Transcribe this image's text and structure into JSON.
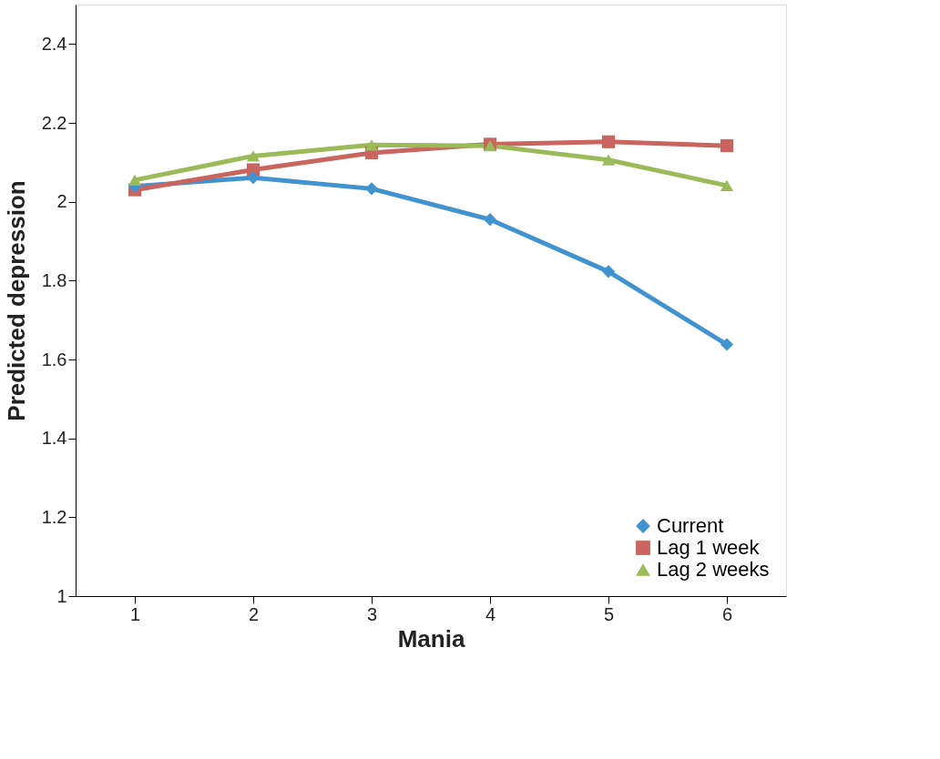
{
  "chart_data": {
    "type": "line",
    "xlabel": "Mania",
    "ylabel": "Predicted depression",
    "categories": [
      "1",
      "2",
      "3",
      "4",
      "5",
      "6"
    ],
    "ylim": [
      1,
      2.5
    ],
    "yticks": [
      1,
      1.2,
      1.4,
      1.6,
      1.8,
      2,
      2.2,
      2.4
    ],
    "grid": false,
    "legend": "bottom right",
    "line_style": "solid",
    "series": [
      {
        "name": "Current",
        "color": "#4193d0",
        "marker": "diamond",
        "values": [
          2.039,
          2.061,
          2.033,
          1.955,
          1.823,
          1.638
        ]
      },
      {
        "name": "Lag 1 week",
        "color": "#c9645e",
        "marker": "square",
        "values": [
          2.03,
          2.081,
          2.124,
          2.146,
          2.152,
          2.142
        ]
      },
      {
        "name": "Lag 2 weeks",
        "color": "#9bbb59",
        "marker": "triangle",
        "values": [
          2.055,
          2.116,
          2.144,
          2.142,
          2.106,
          2.041
        ]
      }
    ]
  }
}
